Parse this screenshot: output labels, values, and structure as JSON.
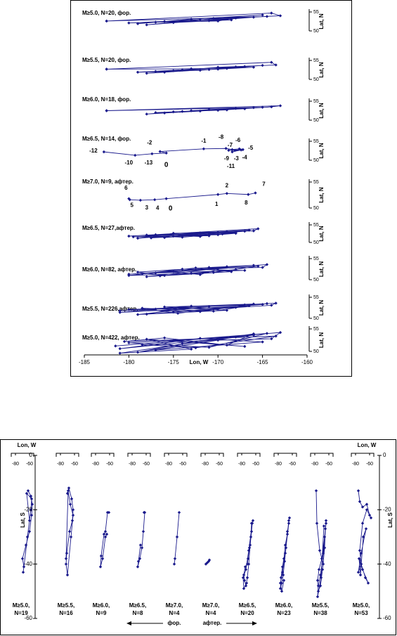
{
  "chart_data": [
    {
      "type": "line",
      "color": "#1a1a8c",
      "xlim": [
        -185,
        -160
      ],
      "xticks": [
        -185,
        -180,
        -175,
        -170,
        -165,
        -160
      ],
      "xlabel": "Lon, W",
      "ylabel": "Lat, N",
      "panels": [
        {
          "label": "M≥5.0, N=20, фор.",
          "ylim": [
            49,
            56
          ],
          "yticks": [
            50,
            55
          ],
          "x": [
            -182.5,
            -164,
            -163,
            -172,
            -178,
            -168,
            -170,
            -177,
            -179,
            -173,
            -165,
            -170.5,
            -175,
            -168.5,
            -180,
            -166,
            -171,
            -176,
            -164.5,
            -182.5
          ],
          "y": [
            52.6,
            54.7,
            54,
            53,
            51.6,
            53.4,
            52.6,
            52.3,
            51.9,
            53.1,
            54.2,
            53.3,
            52.2,
            52.9,
            52.1,
            53.6,
            52.7,
            52.5,
            53.8,
            52.6
          ]
        },
        {
          "label": "M≥5.5, N=20, фор.",
          "ylim": [
            49,
            56
          ],
          "yticks": [
            50,
            55
          ],
          "x": [
            -182.5,
            -164,
            -163.5,
            -170,
            -178,
            -176,
            -169,
            -172,
            -179,
            -167,
            -174,
            -168,
            -177,
            -165,
            -171,
            -175,
            -170,
            -166,
            -173,
            -182.5
          ],
          "y": [
            52.7,
            54.5,
            53.8,
            53.2,
            51.6,
            51.9,
            52.9,
            52.4,
            51.9,
            53.4,
            52.5,
            53.3,
            52.1,
            53.7,
            52.6,
            52.3,
            52.7,
            53.2,
            52.8,
            52.7
          ]
        },
        {
          "label": "M≥6.0, N=18, фор.",
          "ylim": [
            49,
            56
          ],
          "yticks": [
            50,
            55
          ],
          "x": [
            -182.5,
            -163,
            -164,
            -170,
            -175,
            -178,
            -172,
            -168,
            -176,
            -171,
            -166,
            -174,
            -169,
            -177,
            -167,
            -173,
            -165,
            -182.5
          ],
          "y": [
            52.5,
            53.8,
            53.5,
            52.6,
            52.2,
            51.6,
            52.4,
            53.1,
            51.9,
            52.8,
            53.3,
            52.3,
            52.7,
            52,
            53,
            52.5,
            53.4,
            52.5
          ]
        },
        {
          "label": "M≥6.5, N=14, фор.",
          "ylim": [
            49,
            56
          ],
          "yticks": [
            50,
            55
          ],
          "x": [
            -182.8,
            -179.3,
            -177.4,
            -175.8,
            -176.5,
            -171.6,
            -169.1,
            -168.4,
            -167.6,
            -167.2,
            -168.8,
            -168.1,
            -167.4,
            -168.4
          ],
          "y": [
            52.2,
            51.3,
            51.7,
            51.9,
            52.3,
            53,
            53.1,
            52.8,
            53,
            52.8,
            52.6,
            52.6,
            52.7,
            52.2
          ],
          "point_labels": [
            "-12",
            "-10",
            "-13",
            "0",
            "-2",
            "-1",
            "-8",
            "-7",
            "-6",
            "-5",
            "-9",
            "-3",
            "-4",
            "-11"
          ]
        },
        {
          "label": "M≥7.0, N=9, афтер.",
          "ylim": [
            49,
            56
          ],
          "yticks": [
            50,
            55
          ],
          "x": [
            -180,
            -179.9,
            -178.7,
            -177.1,
            -175.8,
            -170,
            -169,
            -166.6,
            -165.8
          ],
          "y": [
            51.8,
            51.6,
            51.5,
            51.6,
            51.8,
            52.6,
            52.8,
            52.6,
            52.9
          ],
          "point_labels": [
            "6",
            "5",
            "3",
            "4",
            "0",
            "1",
            "2",
            "8",
            "7"
          ]
        },
        {
          "label": "M≥6.5, N=27,афтер.",
          "ylim": [
            49,
            56
          ],
          "yticks": [
            50,
            55
          ],
          "x": [
            -180,
            -165.5,
            -166,
            -175,
            -179,
            -170,
            -172,
            -177,
            -168,
            -174,
            -178,
            -169,
            -171,
            -176,
            -167,
            -173,
            -179.5,
            -170,
            -168,
            -175,
            -166.5,
            -172,
            -177.5,
            -169.5,
            -174,
            -171,
            -178
          ],
          "y": [
            51.8,
            53.9,
            53.3,
            52.6,
            51.2,
            52.9,
            51.7,
            52.2,
            52.8,
            51.5,
            51.9,
            53.1,
            52.3,
            51.4,
            53.2,
            52.5,
            51.6,
            52.2,
            52.6,
            51.8,
            53.5,
            52.7,
            51.3,
            52.4,
            52,
            51.9,
            52.1
          ]
        },
        {
          "label": "M≥6.0, N=82, афтер.",
          "ylim": [
            49,
            56
          ],
          "yticks": [
            50,
            55
          ],
          "x": [
            -180,
            -164.5,
            -165,
            -170,
            -178,
            -173,
            -168,
            -176,
            -179,
            -171,
            -166,
            -175,
            -172,
            -169,
            -177,
            -167,
            -174,
            -180,
            -170.5,
            -165.5,
            -178.5,
            -172.5,
            -168.5,
            -176.5
          ],
          "y": [
            51.3,
            53.6,
            52.9,
            52.7,
            50.7,
            51.5,
            52.4,
            51,
            51.8,
            52.9,
            53.4,
            51.9,
            51.2,
            53.1,
            51.6,
            52.2,
            52.5,
            51,
            51.7,
            53.2,
            51.4,
            52.8,
            51.9,
            50.9
          ]
        },
        {
          "label": "M≥5.5, N=226,афтер.",
          "ylim": [
            49,
            56
          ],
          "yticks": [
            50,
            55
          ],
          "x": [
            -181,
            -163.5,
            -164,
            -170,
            -178,
            -174,
            -167,
            -180,
            -172,
            -166,
            -176,
            -169,
            -179,
            -171,
            -165,
            -175,
            -168,
            -177,
            -173,
            -181,
            -166.5,
            -170.5,
            -178.5,
            -174.5,
            -164.5
          ],
          "y": [
            51.8,
            53.6,
            53.1,
            52.3,
            51,
            52.5,
            53.2,
            52.1,
            51.6,
            53.4,
            52.7,
            51.9,
            50.9,
            52.8,
            53.3,
            51.5,
            52.6,
            52.2,
            52.9,
            51.4,
            53,
            51.7,
            52.4,
            51.2,
            53.5
          ]
        },
        {
          "label": "M≥5.0, N=422, афтер.",
          "ylim": [
            49,
            56
          ],
          "yticks": [
            50,
            55
          ],
          "x": [
            -181.5,
            -163,
            -164,
            -170,
            -179,
            -174,
            -166,
            -181,
            -172,
            -165,
            -177,
            -168,
            -180,
            -171,
            -164.5,
            -175,
            -167,
            -178,
            -173,
            -181,
            -166,
            -169,
            -176,
            -180.5,
            -163.5,
            -172.5,
            -178.5
          ],
          "y": [
            51.2,
            54.2,
            52.8,
            52.5,
            49.8,
            51.7,
            53.6,
            50.6,
            52.9,
            52.1,
            50.3,
            53.2,
            51.9,
            50.9,
            54,
            52.4,
            51.1,
            52.7,
            50.5,
            49.6,
            53.9,
            51.4,
            53,
            52.2,
            53.4,
            50.8,
            51.5
          ]
        }
      ]
    },
    {
      "type": "line",
      "color": "#1a1a8c",
      "xlim": [
        -86,
        -54
      ],
      "xticks": [
        -80,
        -60
      ],
      "ylim": [
        -60,
        0
      ],
      "yticks": [
        0,
        -20,
        -40,
        -60
      ],
      "xlabel": "Lon, W",
      "ylabel": "Lat, S",
      "direction_labels": [
        "фор.",
        "афтер."
      ],
      "panels": [
        {
          "label": [
            "M≥5.0,",
            "N=19"
          ],
          "x": [
            -62,
            -58,
            -56,
            -57,
            -60,
            -65,
            -70,
            -68,
            -63,
            -58,
            -57,
            -64,
            -60,
            -69
          ],
          "y": [
            -13,
            -15,
            -18,
            -22,
            -28,
            -33,
            -38,
            -41,
            -30,
            -20,
            -16,
            -14,
            -24,
            -43
          ]
        },
        {
          "label": [
            "M≥5.5,",
            "N=16"
          ],
          "x": [
            -70,
            -68,
            -64,
            -62,
            -63,
            -67,
            -71,
            -72,
            -70,
            -65,
            -62,
            -66,
            -69,
            -72
          ],
          "y": [
            -14,
            -12,
            -16,
            -20,
            -24,
            -28,
            -36,
            -40,
            -44,
            -30,
            -22,
            -18,
            -13,
            -38
          ]
        },
        {
          "label": [
            "M≥6.0,",
            "N=9"
          ],
          "x": [
            -61,
            -63,
            -66,
            -68,
            -72,
            -73,
            -70,
            -66,
            -64
          ],
          "y": [
            -21,
            -21,
            -28,
            -29,
            -37,
            -41,
            -38,
            -30,
            -29
          ]
        },
        {
          "label": [
            "M≥6.5,",
            "N=8"
          ],
          "x": [
            -63,
            -62,
            -64,
            -66,
            -69,
            -72,
            -71,
            -68
          ],
          "y": [
            -21,
            -21,
            -28,
            -34,
            -38,
            -41,
            -39,
            -33
          ]
        },
        {
          "label": [
            "M≥7.0,",
            "N=4"
          ],
          "x": [
            -65,
            -68,
            -71,
            -72
          ],
          "y": [
            -21,
            -30,
            -38,
            -40
          ]
        },
        {
          "label": [
            "M≥7.0,",
            "N=4"
          ],
          "x": [
            -79,
            -77,
            -75,
            -74
          ],
          "y": [
            -40,
            -39.5,
            -39,
            -38.5
          ]
        },
        {
          "label": [
            "M≥6.5,",
            "N=20"
          ],
          "x": [
            -64,
            -66,
            -67,
            -69,
            -71,
            -72,
            -75,
            -77,
            -76,
            -74,
            -72,
            -70,
            -68,
            -66,
            -65,
            -70,
            -74,
            -78,
            -77,
            -73
          ],
          "y": [
            -24,
            -25,
            -30,
            -34,
            -38,
            -40,
            -41,
            -44,
            -46,
            -48,
            -45,
            -40,
            -33,
            -28,
            -25,
            -35,
            -42,
            -45,
            -49,
            -47
          ]
        },
        {
          "label": [
            "M≥6.0,",
            "N=23"
          ],
          "x": [
            -64,
            -65,
            -67,
            -70,
            -72,
            -74,
            -76,
            -77,
            -75,
            -73,
            -71,
            -69,
            -67,
            -65,
            -70,
            -74,
            -77,
            -75,
            -72
          ],
          "y": [
            -23,
            -24,
            -29,
            -33,
            -38,
            -41,
            -45,
            -49,
            -47,
            -44,
            -39,
            -34,
            -28,
            -25,
            -36,
            -43,
            -47,
            -50,
            -46
          ]
        },
        {
          "label": [
            "M≥5.5,",
            "N=38"
          ],
          "x": [
            -78,
            -77,
            -73,
            -68,
            -64,
            -64,
            -66,
            -70,
            -74,
            -76,
            -75,
            -72,
            -69,
            -66,
            -65,
            -68,
            -72,
            -75,
            -76,
            -71,
            -67
          ],
          "y": [
            -13,
            -25,
            -35,
            -40,
            -24,
            -25,
            -30,
            -38,
            -42,
            -46,
            -50,
            -48,
            -42,
            -34,
            -27,
            -36,
            -44,
            -48,
            -52,
            -45,
            -26
          ]
        },
        {
          "label": [
            "M≥5.0,",
            "N=53"
          ],
          "x": [
            -76,
            -74,
            -70,
            -64,
            -60,
            -58,
            -64,
            -70,
            -74,
            -72,
            -66,
            -62,
            -70,
            -75,
            -73,
            -69,
            -65,
            -72,
            -76,
            -72
          ],
          "y": [
            -13,
            -17,
            -19,
            -18,
            -22,
            -23,
            -20,
            -25,
            -35,
            -40,
            -45,
            -47,
            -42,
            -38,
            -44,
            -30,
            -27,
            -36,
            -43,
            -40
          ]
        }
      ]
    }
  ]
}
